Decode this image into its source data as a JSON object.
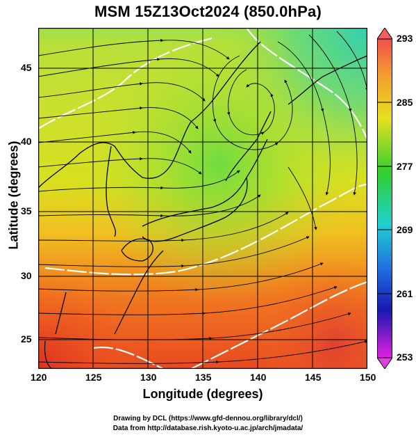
{
  "title": "MSM 15Z13Oct2024 (850.0hPa)",
  "axes": {
    "xlabel": "Longitude (degrees)",
    "ylabel": "Latitude  (degrees)",
    "x_ticks": [
      "120",
      "125",
      "130",
      "135",
      "140",
      "145",
      "150"
    ],
    "y_ticks": [
      "25",
      "30",
      "35",
      "40",
      "45"
    ]
  },
  "colorbar": {
    "ticks": [
      "293",
      "285",
      "277",
      "269",
      "261",
      "253"
    ],
    "colors": [
      "#f0504a",
      "#f5a030",
      "#e6e020",
      "#30d030",
      "#20d0d0",
      "#2070e0",
      "#1818b0",
      "#e020e0"
    ]
  },
  "credits": {
    "line1": "Drawing by DCL (https://www.gfd-dennou.org/library/dcl/)",
    "line2": "Data from http://database.rish.kyoto-u.ac.jp/arch/jmadata/"
  },
  "map_data": {
    "lon_range": [
      120,
      150
    ],
    "lat_range": [
      22.5,
      47.7
    ],
    "low_center": {
      "lon": 136.5,
      "lat": 42.5
    }
  }
}
